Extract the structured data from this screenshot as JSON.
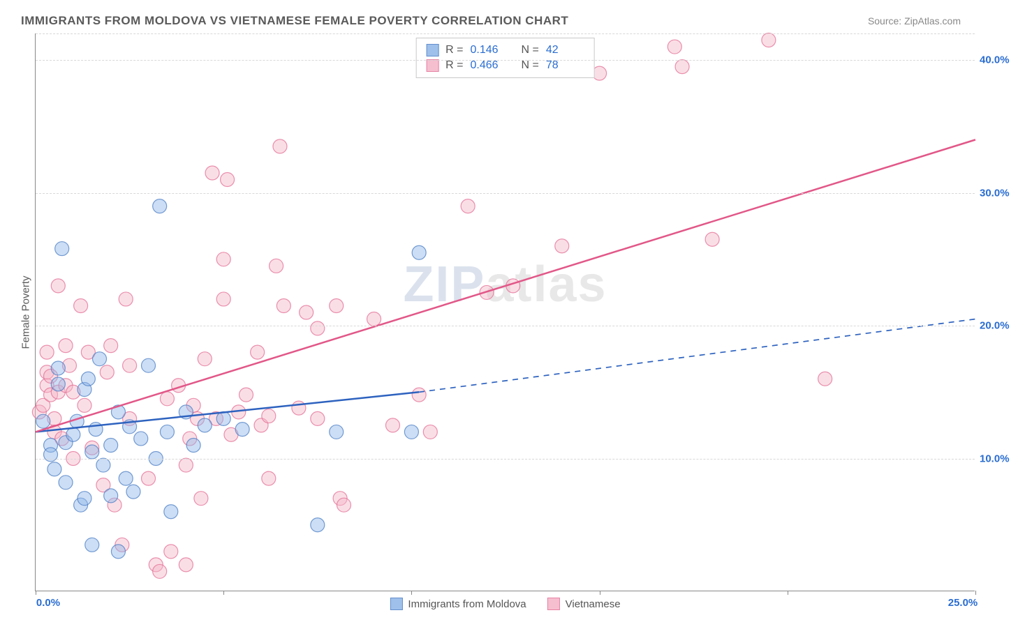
{
  "title": "IMMIGRANTS FROM MOLDOVA VS VIETNAMESE FEMALE POVERTY CORRELATION CHART",
  "source_label": "Source:",
  "source_value": "ZipAtlas.com",
  "ylabel": "Female Poverty",
  "watermark_a": "ZIP",
  "watermark_b": "atlas",
  "chart": {
    "type": "scatter",
    "background_color": "#ffffff",
    "grid_color": "#d8d8d8",
    "axis_color": "#888888",
    "xlim": [
      0,
      25
    ],
    "ylim": [
      0,
      42
    ],
    "xticks": [
      0,
      5,
      10,
      15,
      20,
      25
    ],
    "yticks": [
      10,
      20,
      30,
      40
    ],
    "xtick_labels": [
      "0.0%",
      "",
      "",
      "",
      "",
      "25.0%"
    ],
    "ytick_labels": [
      "10.0%",
      "20.0%",
      "30.0%",
      "40.0%"
    ],
    "tick_font_color": "#2a6dd1",
    "tick_font_size": 15,
    "marker_radius": 10,
    "marker_opacity": 0.45,
    "series": [
      {
        "name": "Immigrants from Moldova",
        "fill": "#8eb6e8",
        "stroke": "#4a7cc4",
        "r_value": "0.146",
        "n_value": "42",
        "trend": {
          "x1": 0,
          "y1": 12.0,
          "x2": 10.2,
          "y2": 15.0,
          "solid_to_x": 10.2,
          "dash_to_x": 25,
          "dash_to_y": 20.5,
          "color": "#2d62bf",
          "width": 2.5
        },
        "points": [
          [
            0.2,
            12.8
          ],
          [
            0.4,
            11.0
          ],
          [
            0.4,
            10.3
          ],
          [
            0.5,
            9.2
          ],
          [
            0.6,
            15.6
          ],
          [
            0.6,
            16.8
          ],
          [
            0.7,
            25.8
          ],
          [
            0.8,
            11.2
          ],
          [
            0.8,
            8.2
          ],
          [
            1.0,
            11.8
          ],
          [
            1.1,
            12.8
          ],
          [
            1.2,
            6.5
          ],
          [
            1.3,
            15.2
          ],
          [
            1.3,
            7.0
          ],
          [
            1.4,
            16.0
          ],
          [
            1.5,
            10.5
          ],
          [
            1.5,
            3.5
          ],
          [
            1.6,
            12.2
          ],
          [
            1.7,
            17.5
          ],
          [
            1.8,
            9.5
          ],
          [
            2.0,
            11.0
          ],
          [
            2.0,
            7.2
          ],
          [
            2.2,
            3.0
          ],
          [
            2.2,
            13.5
          ],
          [
            2.4,
            8.5
          ],
          [
            2.5,
            12.4
          ],
          [
            2.6,
            7.5
          ],
          [
            2.8,
            11.5
          ],
          [
            3.0,
            17.0
          ],
          [
            3.2,
            10.0
          ],
          [
            3.3,
            29.0
          ],
          [
            3.5,
            12.0
          ],
          [
            3.6,
            6.0
          ],
          [
            4.0,
            13.5
          ],
          [
            4.2,
            11.0
          ],
          [
            4.5,
            12.5
          ],
          [
            5.0,
            13.0
          ],
          [
            5.5,
            12.2
          ],
          [
            7.5,
            5.0
          ],
          [
            8.0,
            12.0
          ],
          [
            10.0,
            12.0
          ],
          [
            10.2,
            25.5
          ]
        ]
      },
      {
        "name": "Vietnamese",
        "fill": "#f5b5c8",
        "stroke": "#e36d94",
        "r_value": "0.466",
        "n_value": "78",
        "trend": {
          "x1": 0,
          "y1": 12.0,
          "x2": 25,
          "y2": 34.0,
          "solid_to_x": 25,
          "color": "#e25788",
          "width": 2.5
        },
        "points": [
          [
            0.1,
            13.5
          ],
          [
            0.2,
            14.0
          ],
          [
            0.3,
            15.5
          ],
          [
            0.3,
            16.5
          ],
          [
            0.3,
            18.0
          ],
          [
            0.4,
            14.8
          ],
          [
            0.4,
            16.2
          ],
          [
            0.5,
            13.0
          ],
          [
            0.5,
            12.0
          ],
          [
            0.6,
            23.0
          ],
          [
            0.6,
            15.0
          ],
          [
            0.7,
            11.5
          ],
          [
            0.8,
            18.5
          ],
          [
            0.8,
            15.5
          ],
          [
            0.9,
            17.0
          ],
          [
            1.0,
            15.0
          ],
          [
            1.0,
            10.0
          ],
          [
            1.2,
            21.5
          ],
          [
            1.3,
            14.0
          ],
          [
            1.4,
            18.0
          ],
          [
            1.5,
            10.8
          ],
          [
            1.8,
            8.0
          ],
          [
            1.9,
            16.5
          ],
          [
            2.0,
            18.5
          ],
          [
            2.1,
            6.5
          ],
          [
            2.3,
            3.5
          ],
          [
            2.4,
            22.0
          ],
          [
            2.5,
            13.0
          ],
          [
            2.5,
            17.0
          ],
          [
            3.0,
            8.5
          ],
          [
            3.2,
            2.0
          ],
          [
            3.3,
            1.5
          ],
          [
            3.5,
            14.5
          ],
          [
            3.6,
            3.0
          ],
          [
            3.8,
            15.5
          ],
          [
            4.0,
            2.0
          ],
          [
            4.0,
            9.5
          ],
          [
            4.1,
            11.5
          ],
          [
            4.2,
            14.0
          ],
          [
            4.3,
            13.0
          ],
          [
            4.4,
            7.0
          ],
          [
            4.5,
            17.5
          ],
          [
            4.7,
            31.5
          ],
          [
            4.8,
            13.0
          ],
          [
            5.0,
            22.0
          ],
          [
            5.0,
            25.0
          ],
          [
            5.1,
            31.0
          ],
          [
            5.2,
            11.8
          ],
          [
            5.4,
            13.5
          ],
          [
            5.6,
            14.8
          ],
          [
            5.9,
            18.0
          ],
          [
            6.0,
            12.5
          ],
          [
            6.2,
            13.2
          ],
          [
            6.2,
            8.5
          ],
          [
            6.4,
            24.5
          ],
          [
            6.5,
            33.5
          ],
          [
            6.6,
            21.5
          ],
          [
            7.0,
            13.8
          ],
          [
            7.2,
            21.0
          ],
          [
            7.5,
            13.0
          ],
          [
            7.5,
            19.8
          ],
          [
            8.0,
            21.5
          ],
          [
            8.1,
            7.0
          ],
          [
            8.2,
            6.5
          ],
          [
            9.0,
            20.5
          ],
          [
            9.5,
            12.5
          ],
          [
            10.2,
            14.8
          ],
          [
            10.5,
            12.0
          ],
          [
            11.5,
            29.0
          ],
          [
            12.0,
            22.5
          ],
          [
            12.7,
            23.0
          ],
          [
            14.0,
            26.0
          ],
          [
            15.0,
            39.0
          ],
          [
            17.0,
            41.0
          ],
          [
            17.2,
            39.5
          ],
          [
            18.0,
            26.5
          ],
          [
            19.5,
            41.5
          ],
          [
            21.0,
            16.0
          ]
        ]
      }
    ]
  }
}
